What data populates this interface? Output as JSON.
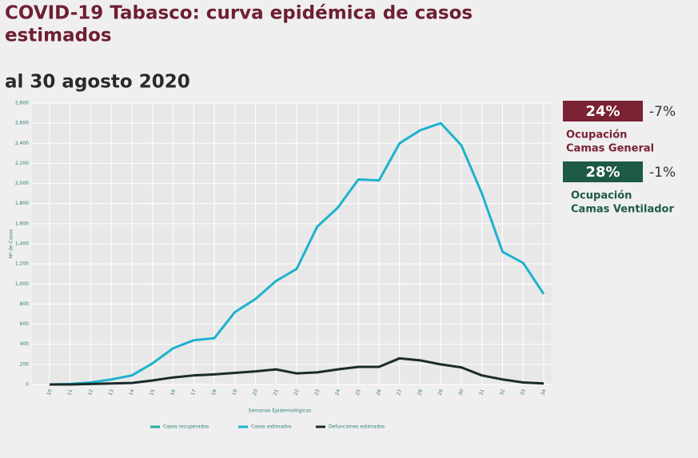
{
  "chart_data": {
    "type": "line",
    "title": "COVID-19 Tabasco: curva epidémica de casos estimados",
    "subtitle": "al 30 agosto 2020",
    "y_label": "Nº de Casos",
    "x_label": "Semanas Epidemiológicas",
    "categories": [
      "10",
      "11",
      "12",
      "13",
      "14",
      "15",
      "16",
      "17",
      "18",
      "19",
      "20",
      "21",
      "22",
      "23",
      "24",
      "25",
      "26",
      "27",
      "28",
      "29",
      "30",
      "31",
      "32",
      "33",
      "34"
    ],
    "series": [
      {
        "name": "Casos recuperados",
        "color": "#2aa79b",
        "values": [
          null,
          null,
          null,
          null,
          null,
          null,
          null,
          null,
          null,
          null,
          null,
          null,
          null,
          null,
          null,
          null,
          null,
          null,
          null,
          null,
          null,
          null,
          null,
          null,
          null
        ]
      },
      {
        "name": "Casos estimados",
        "color": "#1cb3cc",
        "values": [
          0,
          5,
          20,
          50,
          90,
          210,
          360,
          440,
          460,
          720,
          850,
          1030,
          1150,
          1570,
          1760,
          2040,
          2030,
          2400,
          2530,
          2600,
          2380,
          1900,
          1320,
          1210,
          900
        ]
      },
      {
        "name": "Defunciones estimados",
        "color": "#1a2b2b",
        "values": [
          0,
          0,
          5,
          10,
          15,
          40,
          70,
          90,
          100,
          115,
          130,
          150,
          110,
          120,
          150,
          175,
          175,
          260,
          240,
          200,
          170,
          90,
          50,
          20,
          10
        ]
      }
    ],
    "ylim": [
      0,
      2800
    ],
    "yticks": [
      0,
      200,
      400,
      600,
      800,
      {
        "value": 1000,
        "label": "1,000"
      },
      {
        "value": 1200,
        "label": "1,200"
      },
      {
        "value": 1400,
        "label": "1,400"
      },
      {
        "value": 1600,
        "label": "1,600"
      },
      {
        "value": 1800,
        "label": "1,800"
      },
      {
        "value": 2000,
        "label": "2,000"
      },
      {
        "value": 2200,
        "label": "2,200"
      },
      {
        "value": 2400,
        "label": "2,400"
      },
      {
        "value": 2600,
        "label": "2,600"
      },
      {
        "value": 2800,
        "label": "2,800"
      }
    ],
    "grid": true,
    "legend": "bottom"
  },
  "indicators": [
    {
      "value": "24%",
      "change": "-7%",
      "label_1": "Ocupación",
      "label_2": "Camas General",
      "color": "#7b2235"
    },
    {
      "value": "28%",
      "change": "-1%",
      "label_1": "Ocupación",
      "label_2": "Camas Ventilador",
      "color": "#1d5a45"
    }
  ]
}
